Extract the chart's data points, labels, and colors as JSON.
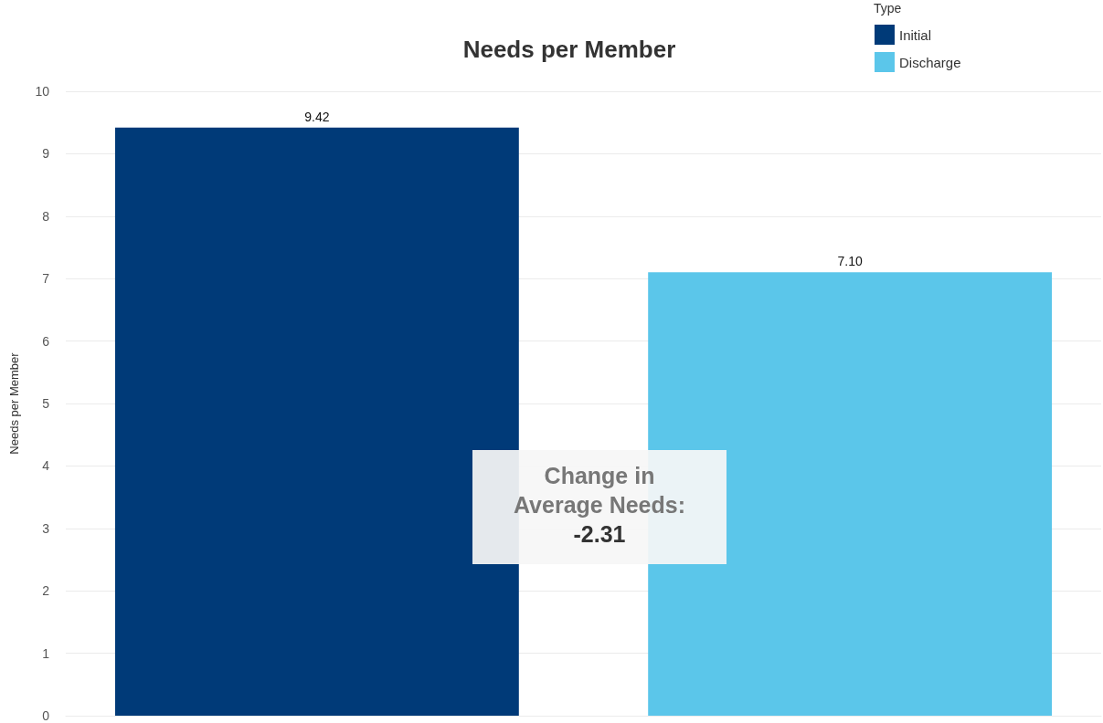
{
  "chart_data": {
    "type": "bar",
    "title": "Needs per Member",
    "ylabel": "Needs per Member",
    "legend_title": "Type",
    "categories": [
      null
    ],
    "series": [
      {
        "name": "Initial",
        "color": "#003a78",
        "values": [
          9.42
        ],
        "value_labels": [
          "9.42"
        ]
      },
      {
        "name": "Discharge",
        "color": "#5bc6ea",
        "values": [
          7.1
        ],
        "value_labels": [
          "7.10"
        ]
      }
    ],
    "ylim": [
      0,
      10
    ],
    "yticks": [
      0,
      1,
      2,
      3,
      4,
      5,
      6,
      7,
      8,
      9,
      10
    ],
    "grid": "y",
    "legend": "top right",
    "annotations": [
      "Change in Average Needs:",
      "-2.31"
    ]
  }
}
